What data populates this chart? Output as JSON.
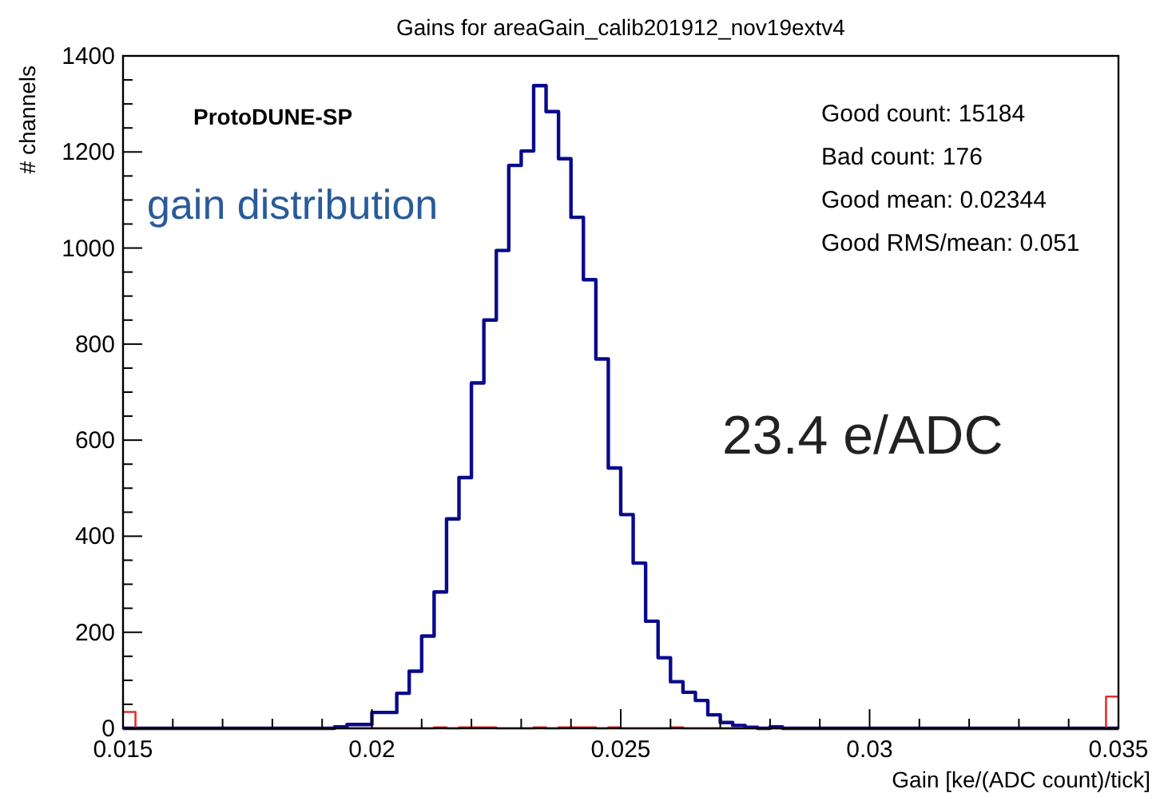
{
  "chart_data": {
    "type": "histogram",
    "title": "Gains for areaGain_calib201912_nov19extv4",
    "xlabel": "Gain [ke/(ADC count)/tick]",
    "ylabel": "# channels",
    "bins": [
      0.015,
      0.01525,
      0.0155,
      0.01575,
      0.016,
      0.01625,
      0.0165,
      0.01675,
      0.017,
      0.01725,
      0.0175,
      0.01775,
      0.018,
      0.01825,
      0.0185,
      0.01875,
      0.019,
      0.01925,
      0.0195,
      0.01975,
      0.02,
      0.02025,
      0.0205,
      0.02075,
      0.021,
      0.02125,
      0.0215,
      0.02175,
      0.022,
      0.02225,
      0.0225,
      0.02275,
      0.023,
      0.02325,
      0.0235,
      0.02375,
      0.024,
      0.02425,
      0.0245,
      0.02475,
      0.025,
      0.02525,
      0.0255,
      0.02575,
      0.026,
      0.02625,
      0.0265,
      0.02675,
      0.027,
      0.02725,
      0.0275,
      0.02775,
      0.028,
      0.02825,
      0.0285,
      0.02875,
      0.029,
      0.02925,
      0.0295,
      0.02975,
      0.03,
      0.03025,
      0.0305,
      0.03075,
      0.031,
      0.03125,
      0.0315,
      0.03175,
      0.032,
      0.03225,
      0.0325,
      0.03275,
      0.033,
      0.03325,
      0.0335,
      0.03375,
      0.034,
      0.03425,
      0.0345,
      0.03475,
      0.035
    ],
    "series": [
      {
        "color": "#0a0a8c",
        "values": [
          0,
          0,
          0,
          0,
          0,
          0,
          0,
          0,
          0,
          0,
          0,
          0,
          0,
          0,
          0,
          0,
          0,
          3,
          8,
          8,
          33,
          33,
          73,
          119,
          192,
          284,
          436,
          522,
          719,
          850,
          995,
          1172,
          1202,
          1338,
          1284,
          1186,
          1064,
          934,
          769,
          542,
          445,
          344,
          223,
          147,
          97,
          75,
          58,
          28,
          12,
          6,
          2,
          0,
          3,
          0,
          0,
          0,
          0,
          0,
          0,
          0,
          0,
          0,
          0,
          0,
          0,
          0,
          0,
          0,
          0,
          0,
          0,
          0,
          0,
          0,
          0,
          0,
          0,
          0,
          0,
          0
        ]
      },
      {
        "color": "#e03030",
        "values": [
          34,
          0,
          0,
          0,
          0,
          0,
          0,
          0,
          0,
          0,
          0,
          0,
          0,
          0,
          0,
          0,
          0,
          0,
          0,
          0,
          0,
          0,
          0,
          0,
          0,
          2,
          0,
          2,
          2,
          2,
          0,
          0,
          0,
          2,
          0,
          2,
          2,
          2,
          0,
          2,
          0,
          0,
          0,
          0,
          2,
          0,
          0,
          0,
          0,
          0,
          0,
          0,
          0,
          0,
          0,
          0,
          0,
          0,
          0,
          0,
          0,
          0,
          0,
          0,
          0,
          0,
          0,
          0,
          0,
          0,
          0,
          0,
          0,
          0,
          0,
          0,
          0,
          0,
          0,
          66
        ]
      }
    ],
    "xlim": [
      0.015,
      0.035
    ],
    "xticks": [
      0.015,
      {
        "value": 0.016,
        "label": null
      },
      {
        "value": 0.017,
        "label": null
      },
      {
        "value": 0.018,
        "label": null
      },
      {
        "value": 0.019,
        "label": null
      },
      0.02,
      {
        "value": 0.021,
        "label": null
      },
      {
        "value": 0.022,
        "label": null
      },
      {
        "value": 0.023,
        "label": null
      },
      {
        "value": 0.024,
        "label": null
      },
      0.025,
      {
        "value": 0.026,
        "label": null
      },
      {
        "value": 0.027,
        "label": null
      },
      {
        "value": 0.028,
        "label": null
      },
      {
        "value": 0.029,
        "label": null
      },
      0.03,
      {
        "value": 0.031,
        "label": null
      },
      {
        "value": 0.032,
        "label": null
      },
      {
        "value": 0.033,
        "label": null
      },
      {
        "value": 0.034,
        "label": null
      },
      0.035
    ],
    "ylim": [
      0,
      1400
    ],
    "yticks": [
      0,
      {
        "value": 50,
        "label": null
      },
      {
        "value": 100,
        "label": null
      },
      {
        "value": 150,
        "label": null
      },
      200,
      {
        "value": 250,
        "label": null
      },
      {
        "value": 300,
        "label": null
      },
      {
        "value": 350,
        "label": null
      },
      400,
      {
        "value": 450,
        "label": null
      },
      {
        "value": 500,
        "label": null
      },
      {
        "value": 550,
        "label": null
      },
      600,
      {
        "value": 650,
        "label": null
      },
      {
        "value": 700,
        "label": null
      },
      {
        "value": 750,
        "label": null
      },
      800,
      {
        "value": 850,
        "label": null
      },
      {
        "value": 900,
        "label": null
      },
      {
        "value": 950,
        "label": null
      },
      1000,
      {
        "value": 1050,
        "label": null
      },
      {
        "value": 1100,
        "label": null
      },
      {
        "value": 1150,
        "label": null
      },
      1200,
      {
        "value": 1250,
        "label": null
      },
      {
        "value": 1300,
        "label": null
      },
      {
        "value": 1350,
        "label": null
      },
      1400
    ],
    "grid": false,
    "annotations": [
      "ProtoDUNE-SP",
      "gain distribution",
      "Good count: 15184",
      "Bad count: 176",
      "Good mean: 0.02344",
      "Good RMS/mean: 0.051",
      "23.4 e/ADC"
    ]
  }
}
